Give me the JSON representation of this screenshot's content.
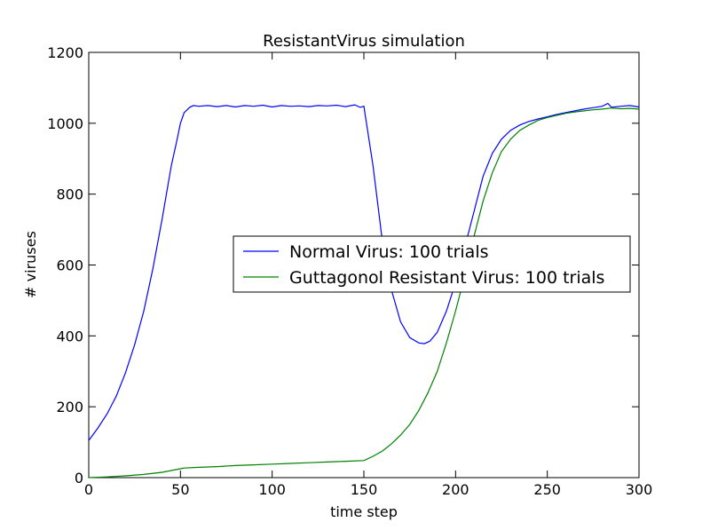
{
  "chart_data": {
    "type": "line",
    "title": "ResistantVirus simulation",
    "xlabel": "time step",
    "ylabel": "# viruses",
    "xlim": [
      0,
      300
    ],
    "ylim": [
      0,
      1200
    ],
    "xticks": [
      0,
      50,
      100,
      150,
      200,
      250,
      300
    ],
    "yticks": [
      0,
      200,
      400,
      600,
      800,
      1000,
      1200
    ],
    "grid": false,
    "legend_position": "center-right",
    "series": [
      {
        "name": "Normal Virus: 100 trials",
        "color": "#0000ff",
        "x": [
          0,
          5,
          10,
          15,
          20,
          25,
          30,
          35,
          40,
          45,
          48,
          50,
          52,
          55,
          57,
          60,
          65,
          70,
          75,
          80,
          85,
          90,
          95,
          100,
          105,
          110,
          115,
          120,
          125,
          130,
          135,
          140,
          145,
          148,
          150,
          155,
          160,
          165,
          170,
          175,
          180,
          183,
          186,
          190,
          195,
          200,
          205,
          210,
          215,
          220,
          225,
          230,
          235,
          240,
          245,
          250,
          255,
          260,
          265,
          270,
          275,
          280,
          283,
          285,
          290,
          295,
          300
        ],
        "y": [
          105,
          140,
          180,
          230,
          295,
          375,
          470,
          590,
          730,
          880,
          950,
          1000,
          1030,
          1045,
          1050,
          1048,
          1050,
          1047,
          1050,
          1046,
          1050,
          1048,
          1051,
          1046,
          1050,
          1048,
          1049,
          1047,
          1050,
          1049,
          1051,
          1047,
          1052,
          1045,
          1048,
          880,
          670,
          530,
          440,
          395,
          380,
          378,
          385,
          410,
          470,
          550,
          650,
          750,
          850,
          915,
          955,
          980,
          995,
          1005,
          1012,
          1018,
          1025,
          1030,
          1035,
          1040,
          1044,
          1048,
          1056,
          1045,
          1048,
          1050,
          1046
        ]
      },
      {
        "name": "Guttagonol Resistant Virus: 100 trials",
        "color": "#008000",
        "x": [
          0,
          10,
          20,
          30,
          40,
          45,
          50,
          52,
          60,
          70,
          80,
          90,
          100,
          110,
          120,
          130,
          140,
          150,
          155,
          160,
          165,
          170,
          175,
          180,
          185,
          190,
          195,
          200,
          205,
          210,
          215,
          220,
          225,
          230,
          235,
          240,
          245,
          250,
          255,
          260,
          265,
          270,
          275,
          280,
          285,
          290,
          295,
          300
        ],
        "y": [
          0,
          2,
          5,
          9,
          15,
          20,
          25,
          27,
          29,
          31,
          34,
          36,
          38,
          40,
          42,
          44,
          46,
          48,
          60,
          75,
          95,
          120,
          150,
          190,
          240,
          300,
          380,
          470,
          570,
          680,
          780,
          860,
          920,
          955,
          980,
          995,
          1008,
          1016,
          1022,
          1028,
          1032,
          1035,
          1038,
          1040,
          1043,
          1041,
          1042,
          1040
        ]
      }
    ]
  }
}
